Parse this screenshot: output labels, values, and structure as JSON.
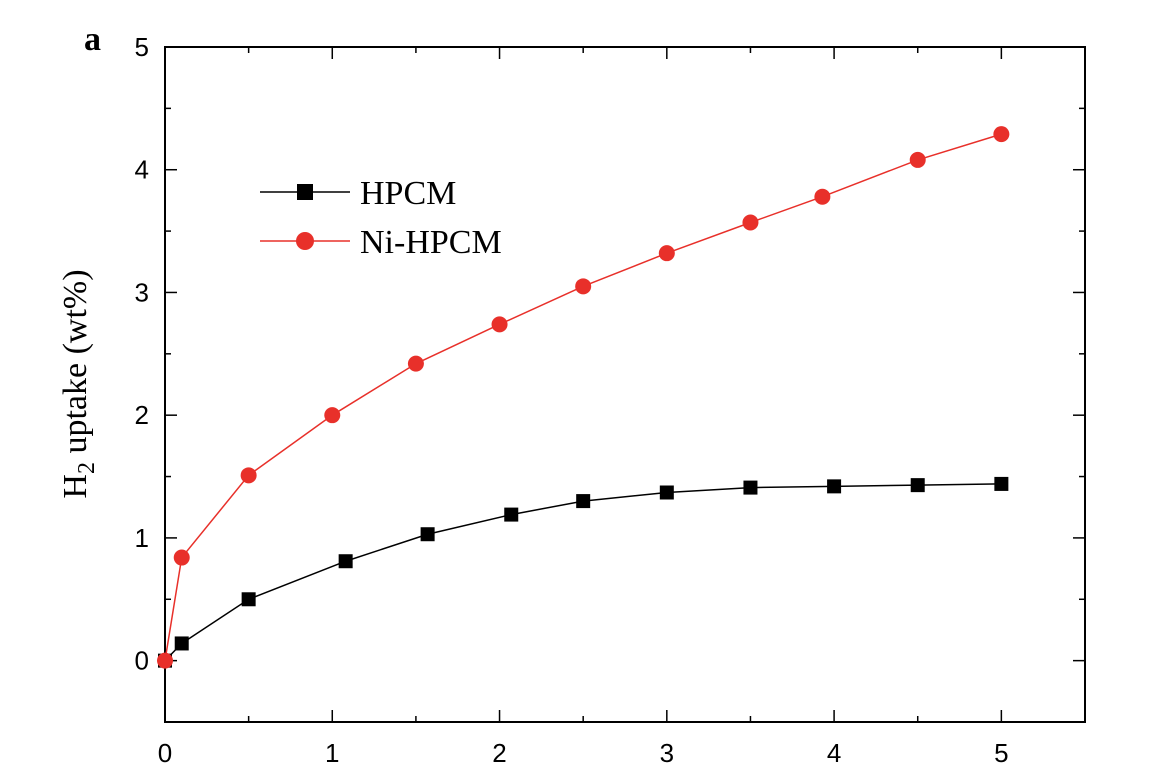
{
  "panel_label": "a",
  "chart_data": {
    "type": "line",
    "title": "",
    "xlabel": "",
    "ylabel": "H2 uptake (wt%)",
    "ylabel_parts": {
      "main": "H",
      "sub": "2",
      "rest": " uptake (wt%)"
    },
    "xlim": [
      0,
      5.5
    ],
    "ylim": [
      -0.5,
      5
    ],
    "xticks": [
      0,
      1,
      2,
      3,
      4,
      5
    ],
    "yticks": [
      0,
      1,
      2,
      3,
      4,
      5
    ],
    "grid": false,
    "legend": {
      "position": "upper-left"
    },
    "series": [
      {
        "name": "HPCM",
        "color": "#000000",
        "marker": "square",
        "x": [
          0,
          0.1,
          0.5,
          1.08,
          1.57,
          2.07,
          2.5,
          3.0,
          3.5,
          4.0,
          4.5,
          5.0
        ],
        "y": [
          0,
          0.14,
          0.5,
          0.81,
          1.03,
          1.19,
          1.3,
          1.37,
          1.41,
          1.42,
          1.43,
          1.44
        ]
      },
      {
        "name": "Ni-HPCM",
        "color": "#e8302a",
        "marker": "circle",
        "x": [
          0,
          0.1,
          0.5,
          1.0,
          1.5,
          2.0,
          2.5,
          3.0,
          3.5,
          3.93,
          4.5,
          5.0
        ],
        "y": [
          0,
          0.84,
          1.51,
          2.0,
          2.42,
          2.74,
          3.05,
          3.32,
          3.57,
          3.78,
          4.08,
          4.29
        ]
      }
    ]
  }
}
